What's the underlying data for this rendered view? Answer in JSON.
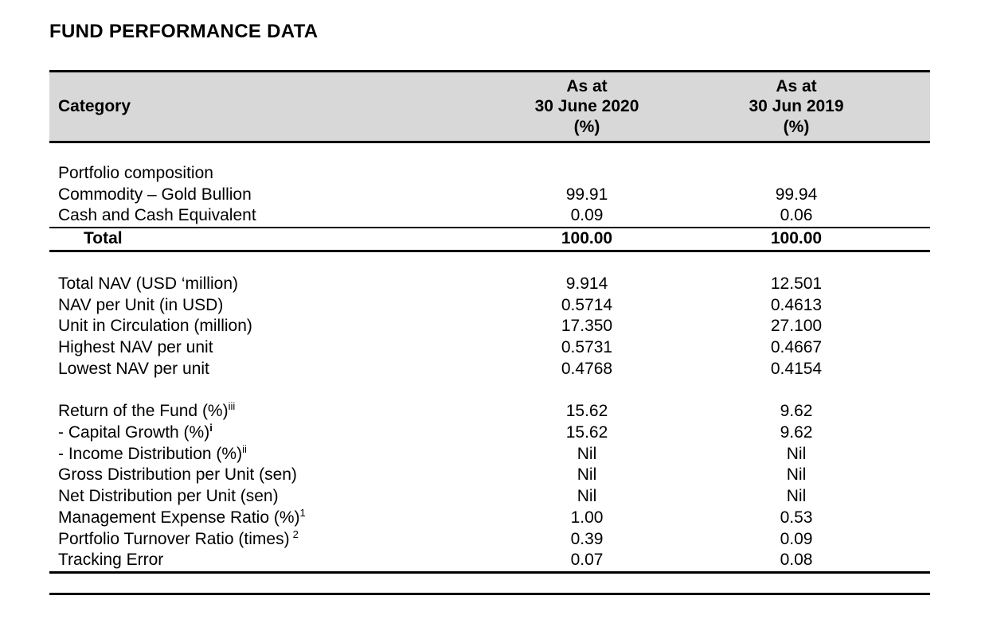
{
  "title": "FUND PERFORMANCE DATA",
  "colors": {
    "header_bg": "#d8d8d8",
    "rule": "#000000",
    "text": "#000000"
  },
  "table": {
    "header": {
      "category": "Category",
      "col_2020": [
        "As at",
        "30 June 2020",
        "(%)"
      ],
      "col_2019": [
        "As at",
        "30 Jun 2019",
        "(%)"
      ]
    },
    "rows": [
      {
        "label": "Portfolio composition",
        "v1": "",
        "v2": ""
      },
      {
        "label": "Commodity – Gold Bullion",
        "v1": "99.91",
        "v2": "99.94"
      },
      {
        "label": "Cash and Cash Equivalent",
        "v1": "0.09",
        "v2": "0.06"
      },
      {
        "type": "total",
        "label": "Total",
        "v1": "100.00",
        "v2": "100.00"
      },
      {
        "type": "spacer"
      },
      {
        "label": "Total NAV (USD ‘million)",
        "v1": "9.914",
        "v2": "12.501"
      },
      {
        "label": "NAV per Unit (in USD)",
        "v1": "0.5714",
        "v2": "0.4613"
      },
      {
        "label": "Unit in Circulation (million)",
        "v1": "17.350",
        "v2": "27.100"
      },
      {
        "label": "Highest NAV per unit",
        "v1": "0.5731",
        "v2": "0.4667"
      },
      {
        "label": "Lowest NAV per unit",
        "v1": "0.4768",
        "v2": "0.4154"
      },
      {
        "type": "spacer"
      },
      {
        "label": "Return of the Fund (%)",
        "sup": "iii",
        "v1": "15.62",
        "v2": "9.62"
      },
      {
        "label": "- Capital Growth (%)",
        "sup": "i",
        "sup_bold": true,
        "v1": "15.62",
        "v2": "9.62"
      },
      {
        "label": "- Income Distribution (%)",
        "sup": "ii",
        "v1": "Nil",
        "v2": "Nil"
      },
      {
        "label": "Gross Distribution per Unit (sen)",
        "v1": "Nil",
        "v2": "Nil"
      },
      {
        "label": "Net Distribution per Unit (sen)",
        "v1": "Nil",
        "v2": "Nil"
      },
      {
        "label": "Management Expense Ratio (%)",
        "sup": "1",
        "v1": "1.00",
        "v2": "0.53"
      },
      {
        "label": "Portfolio Turnover Ratio (times)",
        "sup": "2",
        "sup_gap": true,
        "v1": "0.39",
        "v2": "0.09"
      },
      {
        "type": "last",
        "label": "Tracking Error",
        "v1": "0.07",
        "v2": "0.08"
      }
    ]
  }
}
